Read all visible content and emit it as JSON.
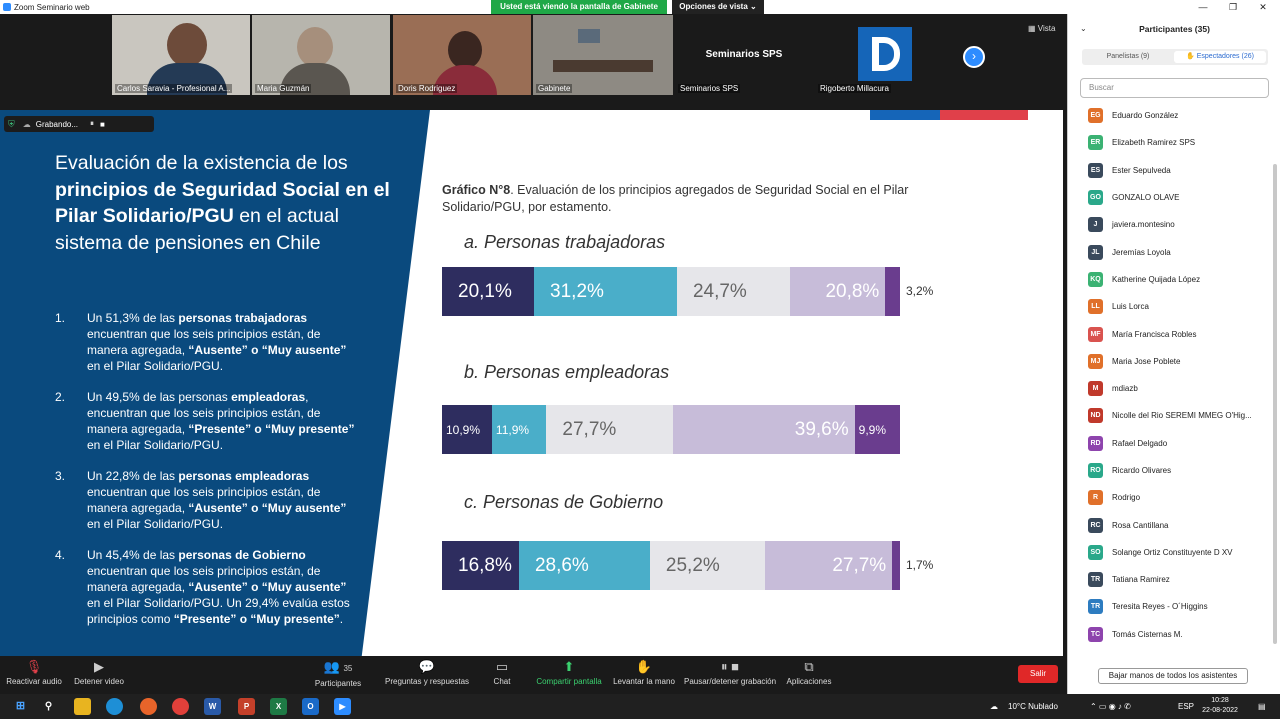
{
  "window": {
    "title": "Zoom Seminario web",
    "minimize": "—",
    "maximize": "❐",
    "close": "✕"
  },
  "share_banner": "Usted está viendo la pantalla de Gabinete",
  "view_options": "Opciones de vista ⌄",
  "vista_label": "Vista",
  "videos": [
    {
      "name": "Carlos Saravia - Profesional A...",
      "bg": "#c9c6bf"
    },
    {
      "name": "Maria Guzmán",
      "bg": "#b7b5ad"
    },
    {
      "name": "Doris Rodriguez",
      "bg": "#9a6e55"
    },
    {
      "name": "Gabinete",
      "bg": "#8e8a83"
    },
    {
      "name": "Seminarios SPS",
      "bg": "#1a1a1a",
      "center_text": "Seminarios SPS"
    },
    {
      "name": "Rigoberto Millacura",
      "bg": "#1a1a1a"
    }
  ],
  "recording": {
    "label": "Grabando...",
    "pause": "⏸",
    "stop": "■"
  },
  "slide": {
    "title_plain_1": "Evaluación de la existencia de los",
    "title_bold": "principios de Seguridad Social en el Pilar Solidario/PGU",
    "title_plain_2": " en el actual sistema de pensiones en Chile",
    "points": [
      {
        "num": "1.",
        "a": "Un 51,3% de las ",
        "b": "personas trabajadoras",
        "c": " encuentran que los seis principios están, de manera agregada, ",
        "d": "“Ausente” o “Muy ausente”",
        "e": " en el Pilar Solidario/PGU.",
        "f": "",
        "g": ""
      },
      {
        "num": "2.",
        "a": "Un 49,5% de las personas ",
        "b": "empleadoras",
        "c": ", encuentran que los seis principios están, de manera agregada, ",
        "d": "“Presente” o “Muy presente”",
        "e": " en el Pilar Solidario/PGU.",
        "f": "",
        "g": ""
      },
      {
        "num": "3.",
        "a": "Un 22,8% de las ",
        "b": "personas empleadoras",
        "c": " encuentran que los seis principios están, de manera agregada, ",
        "d": "“Ausente” o “Muy ausente”",
        "e": " en el Pilar Solidario/PGU.",
        "f": "",
        "g": ""
      },
      {
        "num": "4.",
        "a": "Un 45,4% de las ",
        "b": "personas de Gobierno",
        "c": " encuentran que los seis principios están, de manera agregada, ",
        "d": "“Ausente” o “Muy ausente”",
        "e": " en el Pilar Solidario/PGU. Un 29,4% evalúa estos principios como ",
        "f": "“Presente” o “Muy presente”",
        "g": "."
      }
    ],
    "graph_label": "Gráfico N°8",
    "graph_title": ". Evaluación de los principios agregados de Seguridad Social en el Pilar Solidario/PGU, por estamento."
  },
  "chart_data": {
    "type": "bar",
    "orientation": "horizontal-stacked",
    "colors": [
      "#2e2d5f",
      "#4aaec9",
      "#e6e6ea",
      "#c7bcd9",
      "#6a3d8e"
    ],
    "groups": [
      {
        "title": "a. Personas trabajadoras",
        "values": [
          20.1,
          31.2,
          24.7,
          20.8,
          3.2
        ],
        "labels": [
          "20,1%",
          "31,2%",
          "24,7%",
          "20,8%",
          "3,2%"
        ]
      },
      {
        "title": "b. Personas empleadoras",
        "values": [
          10.9,
          11.9,
          27.7,
          39.6,
          9.9
        ],
        "labels": [
          "10,9%",
          "11,9%",
          "27,7%",
          "39,6%",
          "9,9%"
        ]
      },
      {
        "title": "c. Personas de Gobierno",
        "values": [
          16.8,
          28.6,
          25.2,
          27.7,
          1.7
        ],
        "labels": [
          "16,8%",
          "28,6%",
          "25,2%",
          "27,7%",
          "1,7%"
        ]
      }
    ]
  },
  "toolbar": {
    "audio": "Reactivar audio",
    "video": "Detener video",
    "participants": "Participantes",
    "participants_count": "35",
    "qa": "Preguntas y respuestas",
    "chat": "Chat",
    "share": "Compartir pantalla",
    "hand": "Levantar la mano",
    "record": "Pausar/detener grabación",
    "apps": "Aplicaciones",
    "leave": "Salir"
  },
  "panel": {
    "title": "Participantes (35)",
    "tab_panelists": "Panelistas (9)",
    "tab_attendees": "Espectadores (26)",
    "search_placeholder": "Buscar",
    "lower_hands": "Bajar manos de todos los asistentes",
    "participants": [
      {
        "initials": "EG",
        "name": "Eduardo González",
        "color": "#e0702a"
      },
      {
        "initials": "ER",
        "name": "Elizabeth Ramirez SPS",
        "color": "#3bb273"
      },
      {
        "initials": "ES",
        "name": "Ester Sepulveda",
        "color": "#3a4a5c"
      },
      {
        "initials": "GO",
        "name": "GONZALO OLAVE",
        "color": "#2aa88a"
      },
      {
        "initials": "J",
        "name": "javiera.montesino",
        "color": "#3a4a5c"
      },
      {
        "initials": "JL",
        "name": "Jeremías Loyola",
        "color": "#3a4a5c"
      },
      {
        "initials": "KQ",
        "name": "Katherine Quijada López",
        "color": "#3bb273"
      },
      {
        "initials": "LL",
        "name": "Luis Lorca",
        "color": "#e0702a"
      },
      {
        "initials": "MF",
        "name": "María Francisca Robles",
        "color": "#d9534f"
      },
      {
        "initials": "MJ",
        "name": "Maria Jose Poblete",
        "color": "#e0702a"
      },
      {
        "initials": "M",
        "name": "mdiazb",
        "color": "#c0392b"
      },
      {
        "initials": "ND",
        "name": "Nicolle del Rio SEREMI MMEG O'Hig...",
        "color": "#c0392b"
      },
      {
        "initials": "RD",
        "name": "Rafael Delgado",
        "color": "#8e44ad"
      },
      {
        "initials": "RO",
        "name": "Ricardo Olivares",
        "color": "#2aa88a"
      },
      {
        "initials": "R",
        "name": "Rodrigo",
        "color": "#e0702a"
      },
      {
        "initials": "RC",
        "name": "Rosa Cantillana",
        "color": "#3a4a5c"
      },
      {
        "initials": "SO",
        "name": "Solange Ortiz Constituyente D XV",
        "color": "#2aa88a"
      },
      {
        "initials": "TR",
        "name": "Tatiana Ramirez",
        "color": "#3a4a5c"
      },
      {
        "initials": "TR",
        "name": "Teresita Reyes - O´Higgins",
        "color": "#2d7cc0"
      },
      {
        "initials": "TC",
        "name": "Tomás Cisternas M.",
        "color": "#8e44ad"
      }
    ]
  },
  "taskbar": {
    "weather": "10°C  Nublado",
    "lang": "ESP",
    "time": "10:28",
    "date": "22-08-2022"
  }
}
